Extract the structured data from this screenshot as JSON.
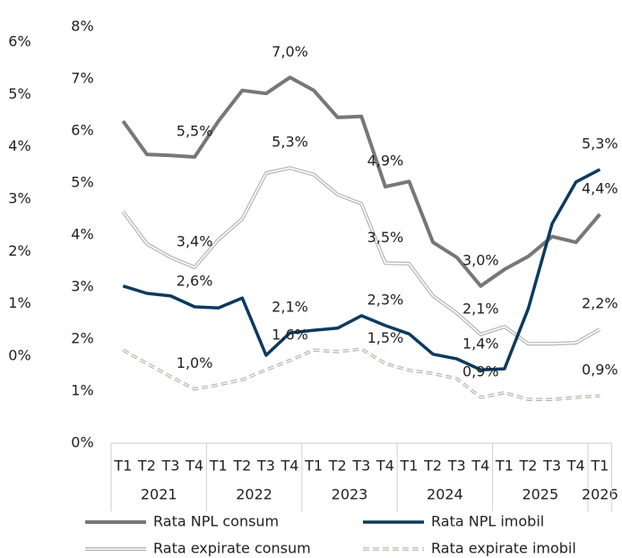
{
  "chart_data": {
    "type": "line",
    "categories": [
      "T1",
      "T2",
      "T3",
      "T4",
      "T1",
      "T2",
      "T3",
      "T4",
      "T1",
      "T2",
      "T3",
      "T4",
      "T1",
      "T2",
      "T3",
      "T4",
      "T1",
      "T2",
      "T3",
      "T4",
      "T1"
    ],
    "category_groups": [
      {
        "label": "2021",
        "size": 4
      },
      {
        "label": "2022",
        "size": 4
      },
      {
        "label": "2023",
        "size": 4
      },
      {
        "label": "2024",
        "size": 4
      },
      {
        "label": "2025",
        "size": 4
      },
      {
        "label": "2026",
        "size": 1
      }
    ],
    "ylim": [
      0,
      8
    ],
    "yticks": [
      {
        "value": 0,
        "label": "0%"
      },
      {
        "value": 1,
        "label": "1%"
      },
      {
        "value": 2,
        "label": "2%"
      },
      {
        "value": 3,
        "label": "3%"
      },
      {
        "value": 4,
        "label": "4%"
      },
      {
        "value": 5,
        "label": "5%"
      },
      {
        "value": 6,
        "label": "6%"
      },
      {
        "value": 7,
        "label": "7%"
      },
      {
        "value": 8,
        "label": "8%"
      }
    ],
    "y2lim": [
      -1.66,
      6.29
    ],
    "y2ticks": [
      {
        "value": 0,
        "label": "0%"
      },
      {
        "value": 1,
        "label": "1%"
      },
      {
        "value": 2,
        "label": "2%"
      },
      {
        "value": 3,
        "label": "3%"
      },
      {
        "value": 4,
        "label": "4%"
      },
      {
        "value": 5,
        "label": "5%"
      },
      {
        "value": 6,
        "label": "6%"
      }
    ],
    "series": [
      {
        "name": "Rata NPL consum",
        "color": "#777777",
        "style": "solid",
        "values": [
          6.19,
          5.55,
          5.53,
          5.5,
          6.19,
          6.78,
          6.72,
          7.03,
          6.78,
          6.26,
          6.28,
          4.93,
          5.03,
          3.86,
          3.57,
          3.02,
          3.34,
          3.59,
          3.97,
          3.86,
          4.4
        ],
        "value_labels": [
          null,
          null,
          null,
          "5,5%",
          null,
          null,
          null,
          "7,0%",
          null,
          null,
          null,
          "4,9%",
          null,
          null,
          null,
          "3,0%",
          null,
          null,
          null,
          null,
          "4,4%"
        ]
      },
      {
        "name": "Rata NPL imobil",
        "color": "#0c3a5f",
        "style": "solid",
        "values": [
          3.02,
          2.88,
          2.83,
          2.62,
          2.6,
          2.79,
          1.69,
          2.12,
          2.17,
          2.21,
          2.45,
          2.26,
          2.1,
          1.71,
          1.62,
          1.41,
          1.43,
          2.59,
          4.22,
          5.02,
          5.26
        ],
        "value_labels": [
          null,
          null,
          null,
          "2,6%",
          null,
          null,
          null,
          "2,1%",
          null,
          null,
          null,
          "2,3%",
          null,
          null,
          null,
          "1,4%",
          null,
          null,
          null,
          null,
          "5,3%"
        ]
      },
      {
        "name": "Rata expirate consum",
        "color": "#b4b4b4",
        "style": "double",
        "values": [
          4.45,
          3.83,
          3.57,
          3.38,
          3.91,
          4.31,
          5.19,
          5.29,
          5.16,
          4.78,
          4.6,
          3.46,
          3.45,
          2.83,
          2.5,
          2.09,
          2.24,
          1.91,
          1.91,
          1.93,
          2.19
        ],
        "value_labels": [
          null,
          null,
          null,
          "3,4%",
          null,
          null,
          null,
          "5,3%",
          null,
          null,
          null,
          "3,5%",
          null,
          null,
          null,
          "2,1%",
          null,
          null,
          null,
          null,
          "2,2%"
        ]
      },
      {
        "name": "Rata expirate imobil",
        "color": "#b7b3a8",
        "style": "dashed",
        "values": [
          1.79,
          1.53,
          1.28,
          1.04,
          1.12,
          1.22,
          1.41,
          1.59,
          1.79,
          1.76,
          1.81,
          1.53,
          1.4,
          1.34,
          1.24,
          0.88,
          0.97,
          0.84,
          0.84,
          0.88,
          0.91
        ],
        "value_labels": [
          null,
          null,
          null,
          "1,0%",
          null,
          null,
          null,
          "1,6%",
          null,
          null,
          null,
          "1,5%",
          null,
          null,
          null,
          "0,9%",
          null,
          null,
          null,
          null,
          "0,9%"
        ]
      }
    ]
  }
}
